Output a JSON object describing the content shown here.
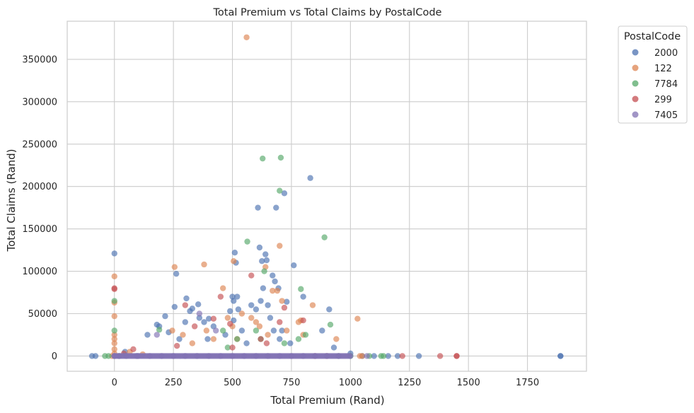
{
  "chart_data": {
    "type": "scatter",
    "title": "Total Premium vs Total Claims by PostalCode",
    "xlabel": "Total Premium (Rand)",
    "ylabel": "Total Claims (Rand)",
    "xlim": [
      -200,
      2000
    ],
    "ylim": [
      -18000,
      395000
    ],
    "x_ticks": [
      0,
      250,
      500,
      750,
      1000,
      1250,
      1500,
      1750
    ],
    "y_ticks": [
      0,
      50000,
      100000,
      150000,
      200000,
      250000,
      300000,
      350000
    ],
    "grid": true,
    "legend": {
      "title": "PostalCode",
      "placement": "outside-top-right"
    },
    "series": [
      {
        "name": "2000",
        "color": "#4c72b0",
        "points": [
          [
            -95,
            0
          ],
          [
            -80,
            0
          ],
          [
            0,
            121000
          ],
          [
            0,
            0
          ],
          [
            45,
            5000
          ],
          [
            95,
            0
          ],
          [
            140,
            25000
          ],
          [
            180,
            37000
          ],
          [
            190,
            35000
          ],
          [
            215,
            47000
          ],
          [
            230,
            28000
          ],
          [
            255,
            58000
          ],
          [
            262,
            97000
          ],
          [
            275,
            20000
          ],
          [
            300,
            40000
          ],
          [
            305,
            68000
          ],
          [
            320,
            53000
          ],
          [
            330,
            56000
          ],
          [
            355,
            61000
          ],
          [
            360,
            45000
          ],
          [
            380,
            40000
          ],
          [
            395,
            20000
          ],
          [
            400,
            44000
          ],
          [
            420,
            35000
          ],
          [
            470,
            25000
          ],
          [
            490,
            53000
          ],
          [
            500,
            70000
          ],
          [
            505,
            65000
          ],
          [
            505,
            42000
          ],
          [
            510,
            122000
          ],
          [
            515,
            110000
          ],
          [
            520,
            70000
          ],
          [
            525,
            55000
          ],
          [
            540,
            30000
          ],
          [
            560,
            15000
          ],
          [
            580,
            60000
          ],
          [
            600,
            55000
          ],
          [
            608,
            175000
          ],
          [
            615,
            128000
          ],
          [
            620,
            65000
          ],
          [
            625,
            112000
          ],
          [
            630,
            80000
          ],
          [
            640,
            120000
          ],
          [
            645,
            113000
          ],
          [
            650,
            60000
          ],
          [
            660,
            45000
          ],
          [
            670,
            95000
          ],
          [
            675,
            30000
          ],
          [
            680,
            88000
          ],
          [
            685,
            175000
          ],
          [
            695,
            80000
          ],
          [
            700,
            20000
          ],
          [
            710,
            30000
          ],
          [
            720,
            192000
          ],
          [
            730,
            64000
          ],
          [
            745,
            15000
          ],
          [
            760,
            107000
          ],
          [
            800,
            70000
          ],
          [
            830,
            210000
          ],
          [
            880,
            30000
          ],
          [
            910,
            55000
          ],
          [
            930,
            10000
          ],
          [
            1000,
            3000
          ],
          [
            1050,
            0
          ],
          [
            1100,
            0
          ],
          [
            1160,
            0
          ],
          [
            1200,
            0
          ],
          [
            1290,
            0
          ],
          [
            1890,
            0
          ],
          [
            1890,
            0
          ]
        ]
      },
      {
        "name": "122",
        "color": "#dd8452",
        "points": [
          [
            -10,
            0
          ],
          [
            0,
            94000
          ],
          [
            0,
            63000
          ],
          [
            0,
            47000
          ],
          [
            0,
            25000
          ],
          [
            0,
            20000
          ],
          [
            0,
            15000
          ],
          [
            0,
            8000
          ],
          [
            0,
            3000
          ],
          [
            65,
            5000
          ],
          [
            120,
            2000
          ],
          [
            245,
            30000
          ],
          [
            255,
            105000
          ],
          [
            290,
            25000
          ],
          [
            330,
            15000
          ],
          [
            380,
            108000
          ],
          [
            390,
            30000
          ],
          [
            420,
            20000
          ],
          [
            460,
            80000
          ],
          [
            480,
            45000
          ],
          [
            500,
            35000
          ],
          [
            505,
            112000
          ],
          [
            520,
            20000
          ],
          [
            540,
            50000
          ],
          [
            560,
            376000
          ],
          [
            580,
            45000
          ],
          [
            600,
            40000
          ],
          [
            615,
            35000
          ],
          [
            640,
            105000
          ],
          [
            650,
            25000
          ],
          [
            670,
            77000
          ],
          [
            690,
            77000
          ],
          [
            700,
            130000
          ],
          [
            710,
            65000
          ],
          [
            730,
            30000
          ],
          [
            780,
            40000
          ],
          [
            790,
            42000
          ],
          [
            800,
            25000
          ],
          [
            840,
            60000
          ],
          [
            940,
            20000
          ],
          [
            1030,
            44000
          ],
          [
            1040,
            0
          ],
          [
            1050,
            0
          ]
        ]
      },
      {
        "name": "7784",
        "color": "#55a868",
        "points": [
          [
            -40,
            0
          ],
          [
            -25,
            0
          ],
          [
            0,
            65000
          ],
          [
            0,
            30000
          ],
          [
            20,
            0
          ],
          [
            190,
            31000
          ],
          [
            460,
            30000
          ],
          [
            480,
            10000
          ],
          [
            520,
            20000
          ],
          [
            563,
            135000
          ],
          [
            600,
            30000
          ],
          [
            620,
            20000
          ],
          [
            628,
            233000
          ],
          [
            635,
            100000
          ],
          [
            700,
            195000
          ],
          [
            705,
            234000
          ],
          [
            720,
            15000
          ],
          [
            780,
            20000
          ],
          [
            790,
            79000
          ],
          [
            810,
            25000
          ],
          [
            890,
            140000
          ],
          [
            915,
            37000
          ],
          [
            950,
            0
          ],
          [
            1000,
            0
          ],
          [
            1080,
            0
          ],
          [
            1130,
            0
          ],
          [
            1140,
            0
          ]
        ]
      },
      {
        "name": "299",
        "color": "#c44e52",
        "points": [
          [
            0,
            80000
          ],
          [
            0,
            79000
          ],
          [
            40,
            3000
          ],
          [
            80,
            8000
          ],
          [
            265,
            12000
          ],
          [
            300,
            60000
          ],
          [
            340,
            35000
          ],
          [
            420,
            44000
          ],
          [
            450,
            70000
          ],
          [
            490,
            38000
          ],
          [
            500,
            10000
          ],
          [
            580,
            95000
          ],
          [
            620,
            20000
          ],
          [
            645,
            15000
          ],
          [
            700,
            40000
          ],
          [
            720,
            57000
          ],
          [
            800,
            42000
          ],
          [
            850,
            0
          ],
          [
            900,
            0
          ],
          [
            1220,
            0
          ],
          [
            1380,
            0
          ],
          [
            1450,
            0
          ],
          [
            1450,
            0
          ]
        ]
      },
      {
        "name": "7405",
        "color": "#8172b3",
        "points": [
          [
            0,
            0
          ],
          [
            20,
            0
          ],
          [
            50,
            0
          ],
          [
            100,
            0
          ],
          [
            150,
            0
          ],
          [
            180,
            25000
          ],
          [
            200,
            0
          ],
          [
            250,
            0
          ],
          [
            300,
            0
          ],
          [
            350,
            0
          ],
          [
            360,
            50000
          ],
          [
            400,
            0
          ],
          [
            430,
            30000
          ],
          [
            450,
            0
          ],
          [
            500,
            0
          ],
          [
            550,
            0
          ],
          [
            600,
            0
          ],
          [
            650,
            0
          ],
          [
            700,
            0
          ],
          [
            750,
            0
          ],
          [
            800,
            0
          ],
          [
            850,
            0
          ],
          [
            900,
            0
          ],
          [
            950,
            0
          ],
          [
            1000,
            0
          ],
          [
            1070,
            0
          ]
        ]
      }
    ]
  }
}
